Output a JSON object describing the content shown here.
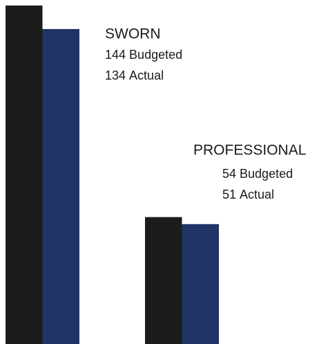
{
  "chart_data": {
    "type": "bar",
    "categories": [
      "SWORN",
      "PROFESSIONAL"
    ],
    "series": [
      {
        "name": "Budgeted",
        "color": "#1c1c1c",
        "values": [
          144,
          54
        ]
      },
      {
        "name": "Actual",
        "color": "#1f3464",
        "values": [
          134,
          51
        ]
      }
    ]
  }
}
